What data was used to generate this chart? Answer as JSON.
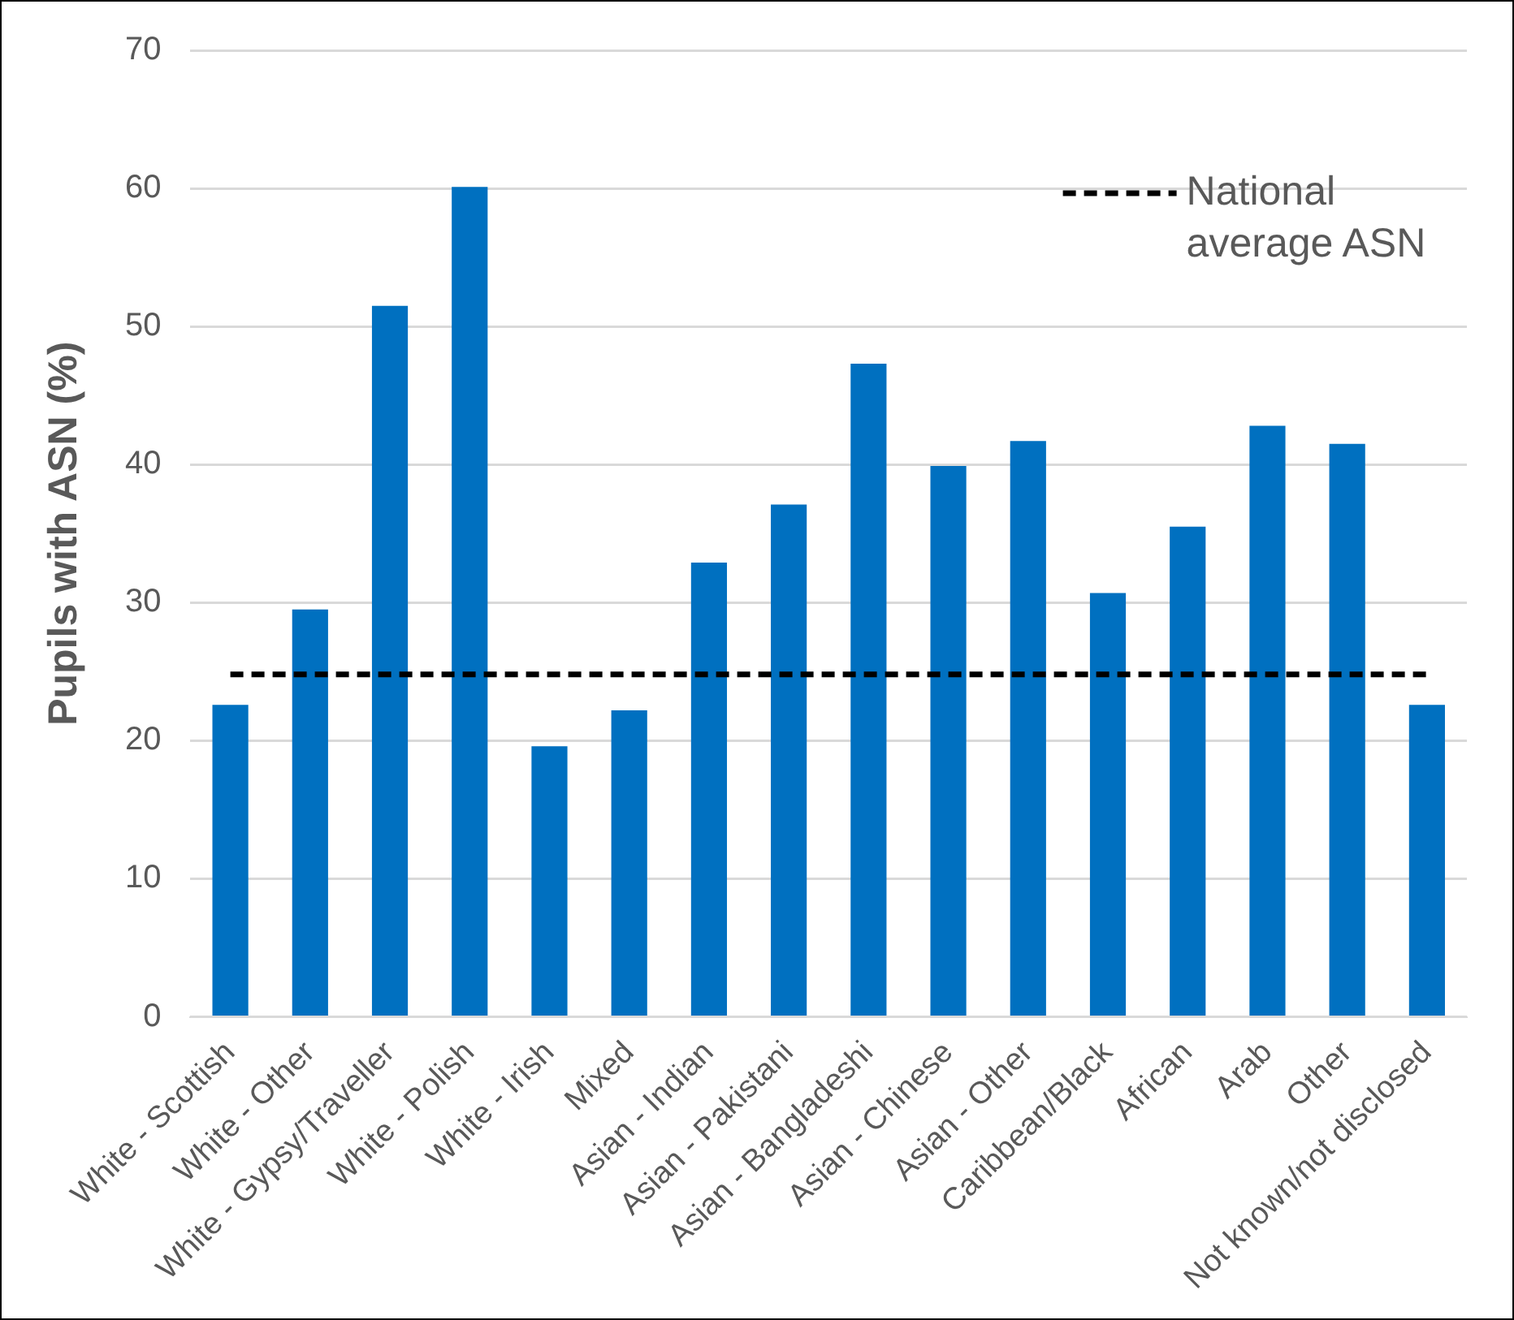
{
  "chart_data": {
    "type": "bar",
    "ylabel": "Pupils with ASN (%)",
    "categories": [
      "White - Scottish",
      "White - Other",
      "White - Gypsy/Traveller",
      "White - Polish",
      "White - Irish",
      "Mixed",
      "Asian - Indian",
      "Asian - Pakistani",
      "Asian - Bangladeshi",
      "Asian - Chinese",
      "Asian - Other",
      "Caribbean/Black",
      "African",
      "Arab",
      "Other",
      "Not known/not disclosed"
    ],
    "series": [
      {
        "color": "#0070c0",
        "values": [
          22.6,
          29.5,
          51.5,
          60.1,
          19.6,
          22.2,
          32.9,
          37.1,
          47.3,
          39.9,
          41.7,
          30.7,
          35.5,
          42.8,
          41.5,
          22.6
        ]
      },
      {
        "type": "line",
        "name": "National average ASN",
        "color": "#000000",
        "line_style": "dashed",
        "marker": "none",
        "values": [
          24.8,
          24.8,
          24.8,
          24.8,
          24.8,
          24.8,
          24.8,
          24.8,
          24.8,
          24.8,
          24.8,
          24.8,
          24.8,
          24.8,
          24.8,
          24.8
        ]
      }
    ],
    "ylim": [
      0,
      70
    ],
    "yticks": [
      0,
      10,
      20,
      30,
      40,
      50,
      60,
      70
    ],
    "grid": "y",
    "legend": "top right"
  }
}
